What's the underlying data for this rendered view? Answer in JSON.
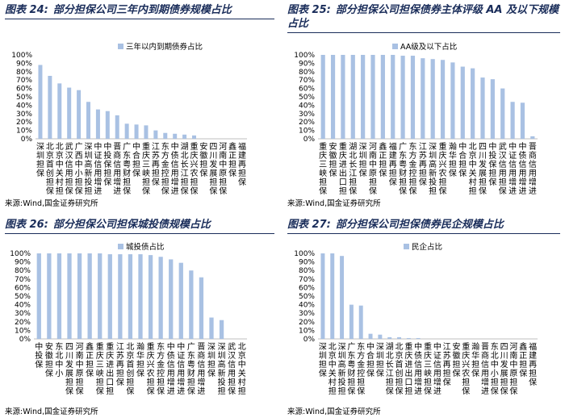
{
  "chart_data": [
    {
      "id": "c24",
      "type": "bar",
      "label": "图表 24:",
      "title": "部分担保公司三年内到期债券规模占比",
      "legend": "三年以内到期债券占比",
      "source": "来源:Wind,国金证券研究所",
      "ylim": [
        0,
        100
      ],
      "yticks": [
        "0%",
        "10%",
        "20%",
        "30%",
        "40%",
        "50%",
        "60%",
        "70%",
        "80%",
        "90%",
        "100%"
      ],
      "categories": [
        "深圳担保",
        "北京首创担保",
        "北京中关村担保",
        "武汉信用担保",
        "广西中小担保",
        "深圳高新投担保",
        "中证信用增进",
        "中投保担保",
        "晋商信用增进",
        "广东粤财担保",
        "中合担保",
        "重庆三峡担保",
        "江苏再担保",
        "东方金控担保",
        "中债信用增进",
        "湖北长江担保",
        "重庆兴农担保",
        "安徽担保",
        "四川发展担保",
        "河南中原担保",
        "鑫正担保",
        "福建再担保"
      ],
      "values": [
        88,
        75,
        66,
        61,
        58,
        44,
        35,
        33,
        28,
        18,
        17,
        16,
        10,
        7,
        6,
        5,
        4,
        0,
        0,
        0,
        0,
        0
      ]
    },
    {
      "id": "c25",
      "type": "bar",
      "label": "图表 25:",
      "title": "部分担保公司担保债券主体评级 AA 及以下规模占比",
      "legend": "AA级及以下占比",
      "source": "来源:Wind,国金证券研究所",
      "ylim": [
        0,
        100
      ],
      "yticks": [
        "0%",
        "10%",
        "20%",
        "30%",
        "40%",
        "50%",
        "60%",
        "70%",
        "80%",
        "90%",
        "100%"
      ],
      "categories": [
        "重庆三峡担保",
        "安徽担保",
        "重庆进出口担保",
        "湖北长江担保",
        "深圳担保",
        "河南中原担保",
        "鑫正担保",
        "福建再担保",
        "广东粤财担保",
        "东方金控担保",
        "江苏再担保",
        "深圳高新投担保",
        "重庆兴农担保",
        "瀚华担保",
        "中合担保",
        "北京中关村担保",
        "四川发展担保",
        "中投保担保",
        "武汉信用担保",
        "中证信用增进",
        "中债信用增进",
        "晋商信用增进"
      ],
      "values": [
        100,
        100,
        100,
        100,
        100,
        100,
        100,
        100,
        99,
        99,
        96,
        95,
        94,
        91,
        86,
        84,
        73,
        71,
        60,
        44,
        43,
        3
      ]
    },
    {
      "id": "c26",
      "type": "bar",
      "label": "图表 26:",
      "title": "部分担保公司担保城投债规模占比",
      "legend": "城投债占比",
      "source": "来源:Wind,国金证券研究所",
      "ylim": [
        0,
        100
      ],
      "yticks": [
        "0%",
        "10%",
        "20%",
        "30%",
        "40%",
        "50%",
        "60%",
        "70%",
        "80%",
        "90%",
        "100%"
      ],
      "categories": [
        "中投保",
        "安徽担保",
        "东北中小",
        "四川发展担保",
        "河南中原担保",
        "鑫正担保",
        "重庆三峡担保",
        "重庆进出口担保",
        "江苏再担保",
        "北京首创担保",
        "瀚华担保",
        "重庆兴农担保",
        "东方金控担保",
        "中债信用增进",
        "中证信用增进",
        "广东粤财担保",
        "晋商信用增进",
        "深圳担保",
        "深圳高新投担保",
        "武汉信用担保",
        "北京中关村担保"
      ],
      "values": [
        100,
        100,
        100,
        100,
        100,
        100,
        100,
        99,
        99,
        99,
        99,
        98,
        96,
        93,
        89,
        80,
        72,
        25,
        22,
        0,
        0
      ]
    },
    {
      "id": "c27",
      "type": "bar",
      "label": "图表 27:",
      "title": "部分担保公司担保债券民企规模占比",
      "legend": "民企占比",
      "source": "来源:Wind,国金证券研究所",
      "ylim": [
        0,
        100
      ],
      "yticks": [
        "0%",
        "10%",
        "20%",
        "30%",
        "40%",
        "50%",
        "60%",
        "70%",
        "80%",
        "90%",
        "100%"
      ],
      "categories": [
        "深圳担保",
        "北京中关村担保",
        "深圳高新投担保",
        "广东粤财担保",
        "东方金控担保",
        "中合担保",
        "深圳担保",
        "湖北长江担保",
        "北京首创担保",
        "重庆进出口担保",
        "中债信用增进",
        "重庆三峡担保",
        "中证信用增进",
        "江苏再担保",
        "安徽担保",
        "重庆兴农担保",
        "瀚华担保",
        "晋商信用增进",
        "东北中小担保",
        "四川发展担保",
        "河南中原担保",
        "鑫正担保",
        "福建再担保"
      ],
      "values": [
        100,
        100,
        97,
        40,
        39,
        6,
        5,
        2,
        2,
        1,
        1,
        0,
        0,
        0,
        0,
        0,
        0,
        0,
        0,
        0,
        0,
        0,
        0
      ]
    }
  ]
}
